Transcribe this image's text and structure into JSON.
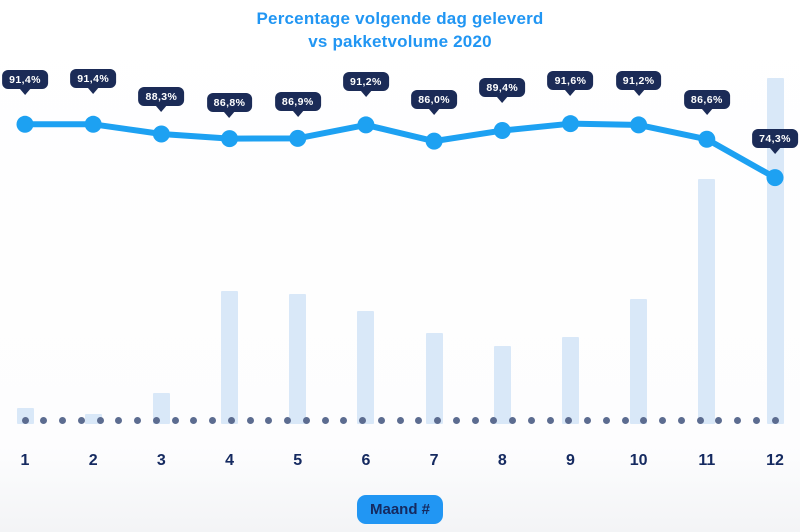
{
  "title": {
    "line1": "Percentage volgende dag geleverd",
    "line2": "vs pakketvolume 2020"
  },
  "x_axis": {
    "badge_label": "Maand #"
  },
  "colors": {
    "accent_blue": "#2196f3",
    "line_blue": "#1da1f2",
    "tooltip_navy": "#1b2b57",
    "bar_light_blue": "#d9e8f8",
    "baseline_dot_gray_blue": "#5c6c90",
    "label_navy": "#152a60",
    "tooltip_text": "#ffffff"
  },
  "chart_data": {
    "type": "combo",
    "title": "Percentage volgende dag geleverd vs pakketvolume 2020",
    "categories": [
      "1",
      "2",
      "3",
      "4",
      "5",
      "6",
      "7",
      "8",
      "9",
      "10",
      "11",
      "12"
    ],
    "xlabel": "Maand #",
    "ylabel": "",
    "grid": false,
    "legend": false,
    "series": [
      {
        "name": "Percentage volgende dag geleverd",
        "type": "line",
        "unit": "%",
        "values": [
          91.4,
          91.4,
          88.3,
          86.8,
          86.9,
          91.2,
          86.0,
          89.4,
          91.6,
          91.2,
          86.6,
          74.3
        ],
        "point_labels": [
          "91,4%",
          "91,4%",
          "88,3%",
          "86,8%",
          "86,9%",
          "91,2%",
          "86,0%",
          "89,4%",
          "91,6%",
          "91,2%",
          "86,6%",
          "74,3%"
        ]
      },
      {
        "name": "Pakketvolume 2020",
        "type": "bar",
        "values_relative_pct_of_max": [
          4.6,
          2.9,
          9.0,
          38.4,
          37.6,
          32.7,
          26.3,
          22.5,
          25.1,
          36.1,
          70.8,
          100
        ],
        "note": "no numeric volume axis shown; bar heights estimated relative to month 12 = 100"
      }
    ]
  }
}
